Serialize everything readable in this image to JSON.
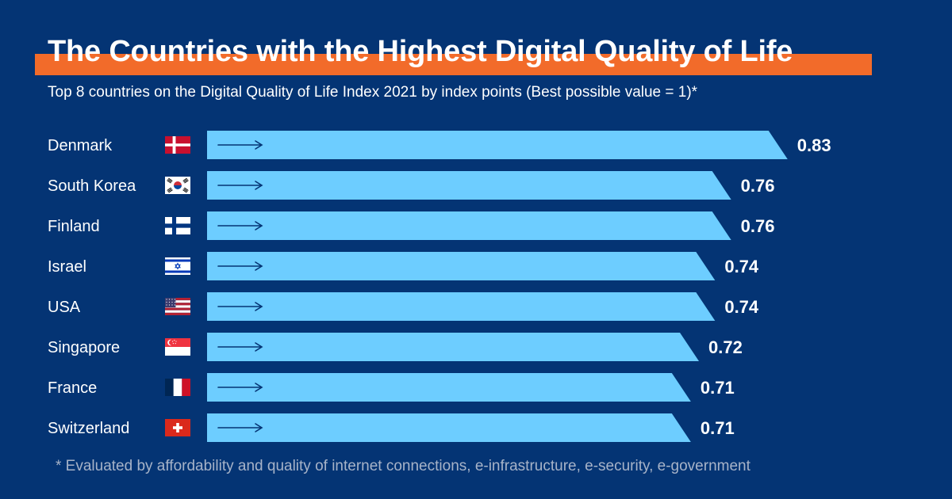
{
  "colors": {
    "background": "#043474",
    "title_bar": "#f26b2a",
    "bar": "#6dcdff",
    "arrow": "#043474",
    "text": "#ffffff",
    "footnote": "#a7b3c8"
  },
  "chart_data": {
    "type": "bar",
    "orientation": "horizontal",
    "title": "The Countries with the Highest Digital Quality of Life",
    "subtitle": "Top 8 countries on the Digital Quality of Life Index 2021 by index points (Best possible value = 1)*",
    "categories": [
      "Denmark",
      "South Korea",
      "Finland",
      "Israel",
      "USA",
      "Singapore",
      "France",
      "Switzerland"
    ],
    "flags": [
      "denmark-flag",
      "south-korea-flag",
      "finland-flag",
      "israel-flag",
      "usa-flag",
      "singapore-flag",
      "france-flag",
      "switzerland-flag"
    ],
    "values": [
      0.83,
      0.76,
      0.76,
      0.74,
      0.74,
      0.72,
      0.71,
      0.71
    ],
    "value_labels": [
      "0.83",
      "0.76",
      "0.76",
      "0.74",
      "0.74",
      "0.72",
      "0.71",
      "0.71"
    ],
    "footnote": "* Evaluated by affordability and quality of internet connections, e-infrastructure, e-security, e-government"
  }
}
